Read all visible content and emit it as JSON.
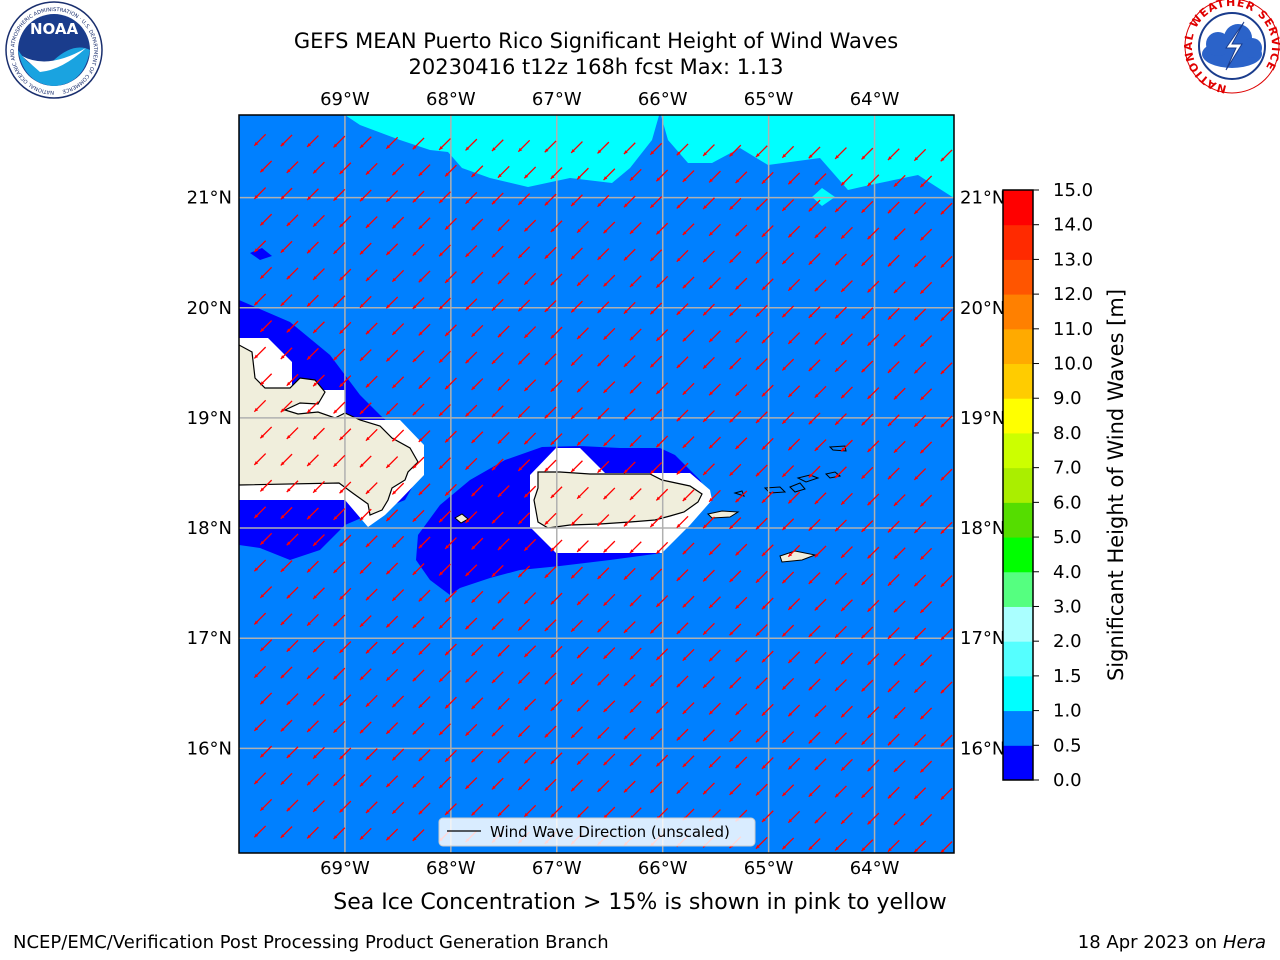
{
  "title": {
    "line1": "GEFS MEAN Puerto Rico Significant Height of Wind Waves",
    "line2": "20230416 t12z 168h fcst   Max: 1.13"
  },
  "caption": "Sea Ice Concentration > 15% is shown in pink to yellow",
  "footer": {
    "left": "NCEP/EMC/Verification Post Processing Product Generation Branch",
    "right_date": "18 Apr 2023 on ",
    "right_host": "Hera"
  },
  "logos": {
    "noaa_label": "NOAA",
    "noaa_ring": "NATIONAL OCEANIC AND ATMOSPHERIC ADMINISTRATION · U.S. DEPARTMENT OF COMMERCE",
    "nws_ring": "NATIONAL WEATHER SERVICE"
  },
  "map": {
    "lon_ticks": [
      "69°W",
      "68°W",
      "67°W",
      "66°W",
      "65°W",
      "64°W"
    ],
    "lon_values": [
      -69,
      -68,
      -67,
      -66,
      -65,
      -64
    ],
    "lat_ticks": [
      "21°N",
      "20°N",
      "19°N",
      "18°N",
      "17°N",
      "16°N"
    ],
    "lat_values": [
      21,
      20,
      19,
      18,
      17,
      16
    ],
    "lon_range": [
      -70,
      -63.25
    ],
    "lat_range": [
      15.05,
      21.75
    ],
    "legend_label": "Wind Wave Direction (unscaled)",
    "wind_wave_direction_deg": 225,
    "colors": {
      "ocean_bg": "#0080ff",
      "low_band": "#0000ff",
      "high_band": "#00ffff",
      "land": "#f0eedc",
      "vector": "#ff0000",
      "grid": "#b0b0b0"
    }
  },
  "colorbar": {
    "label": "Significant Height of Wind Waves [m]",
    "levels": [
      "0.0",
      "0.5",
      "1.0",
      "1.5",
      "2.0",
      "3.0",
      "4.0",
      "5.0",
      "6.0",
      "7.0",
      "8.0",
      "9.0",
      "10.0",
      "11.0",
      "12.0",
      "13.0",
      "14.0",
      "15.0"
    ],
    "colors": [
      "#0000ff",
      "#0080ff",
      "#00ffff",
      "#55ffff",
      "#aaffff",
      "#55ff80",
      "#00ff00",
      "#55dd00",
      "#aaee00",
      "#ccff00",
      "#ffff00",
      "#ffcc00",
      "#ffaa00",
      "#ff8000",
      "#ff5500",
      "#ff2a00",
      "#ff0000"
    ]
  }
}
